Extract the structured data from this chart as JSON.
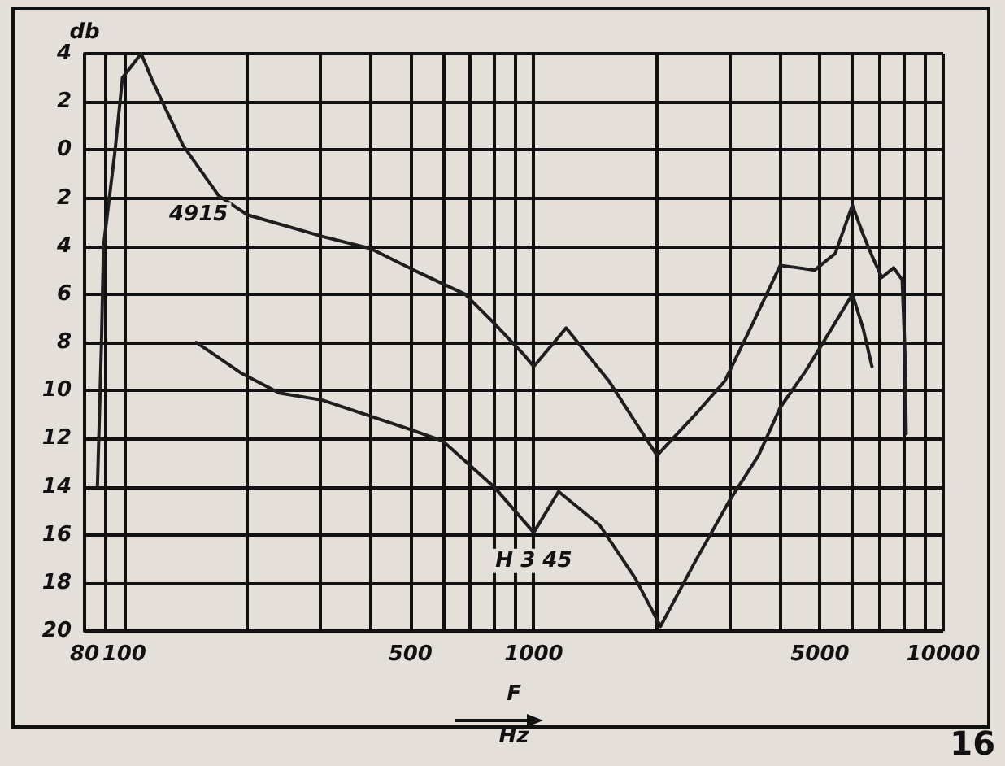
{
  "chart_data": {
    "type": "line",
    "xlabel": "F\nHz",
    "ylabel": "db",
    "annotations": [
      "16"
    ],
    "xlim": [
      80,
      10000
    ],
    "xticks": [
      80,
      {
        "value": 90,
        "label": null
      },
      100,
      {
        "value": 200,
        "label": null
      },
      {
        "value": 300,
        "label": null
      },
      {
        "value": 400,
        "label": null
      },
      500,
      {
        "value": 600,
        "label": null
      },
      {
        "value": 700,
        "label": null
      },
      {
        "value": 800,
        "label": null
      },
      {
        "value": 900,
        "label": null
      },
      1000,
      {
        "value": 2000,
        "label": null
      },
      {
        "value": 3000,
        "label": null
      },
      {
        "value": 4000,
        "label": null
      },
      5000,
      {
        "value": 6000,
        "label": null
      },
      {
        "value": 7000,
        "label": null
      },
      {
        "value": 8000,
        "label": null
      },
      {
        "value": 9000,
        "label": null
      },
      10000
    ],
    "ylim": [
      -20,
      4
    ],
    "yticks": [
      {
        "value": -20,
        "label": "20"
      },
      {
        "value": -18,
        "label": "18"
      },
      {
        "value": -16,
        "label": "16"
      },
      {
        "value": -14,
        "label": "14"
      },
      {
        "value": -12,
        "label": "12"
      },
      {
        "value": -10,
        "label": "10"
      },
      {
        "value": -8,
        "label": "8"
      },
      {
        "value": -6,
        "label": "6"
      },
      {
        "value": -4,
        "label": "4"
      },
      {
        "value": -2,
        "label": "2"
      },
      0,
      2,
      4
    ],
    "log": "x",
    "grid": true,
    "legend": false,
    "marker": "none",
    "series": [
      {
        "name": "4915",
        "color": "#1e1e1e",
        "x": [
          86,
          88,
          89,
          95,
          99,
          110,
          117,
          139,
          170,
          200,
          305,
          400,
          510,
          680,
          800,
          945,
          1000,
          1200,
          1525,
          2000,
          2480,
          2930,
          3430,
          4000,
          4430,
          4850,
          5450,
          6000,
          6370,
          6700,
          7080,
          7570,
          7940,
          8060,
          8120
        ],
        "values": [
          -14,
          -8,
          -4,
          0,
          3,
          4,
          2.9,
          0.2,
          -1.9,
          -2.7,
          -3.6,
          -4.1,
          -5.0,
          -6.0,
          -7.2,
          -8.5,
          -9.0,
          -7.4,
          -9.6,
          -12.7,
          -11.0,
          -9.6,
          -7.2,
          -4.8,
          -4.9,
          -5.0,
          -4.3,
          -2.3,
          -3.5,
          -4.4,
          -5.3,
          -4.9,
          -5.4,
          -8.3,
          -11.8
        ]
      },
      {
        "name": "H 3 45",
        "color": "#1e1e1e",
        "x": [
          150,
          194,
          239,
          305,
          496,
          600,
          800,
          1000,
          1150,
          1450,
          1770,
          2040,
          2480,
          3000,
          3540,
          4000,
          4610,
          5350,
          6000,
          6370,
          6700
        ],
        "values": [
          -8.0,
          -9.3,
          -10.1,
          -10.4,
          -11.6,
          -12.1,
          -14.0,
          -15.9,
          -14.2,
          -15.6,
          -17.8,
          -19.8,
          -17.1,
          -14.6,
          -12.7,
          -10.7,
          -9.2,
          -7.4,
          -6.0,
          -7.4,
          -9.0
        ]
      }
    ]
  }
}
